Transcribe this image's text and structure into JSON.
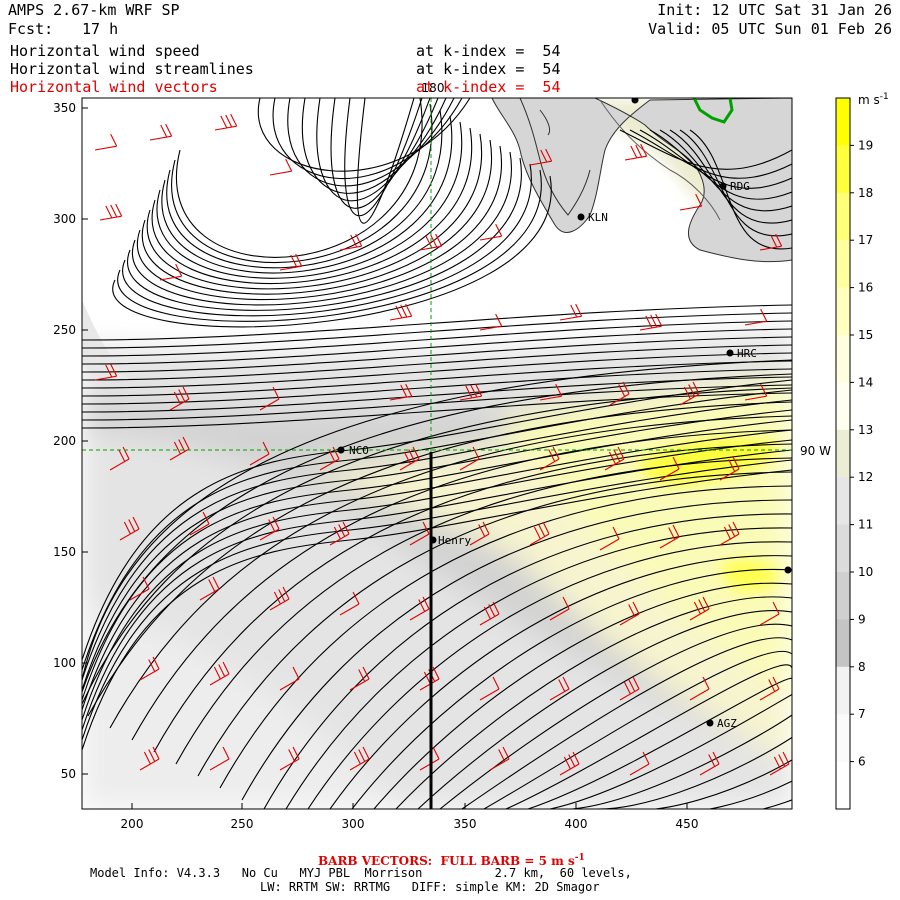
{
  "header": {
    "model_title": "AMPS 2.67-km WRF SP",
    "init": "Init: 12 UTC Sat 31 Jan 26",
    "fcst_label": "Fcst:",
    "fcst_value": "17 h",
    "valid": "Valid: 05 UTC Sun 01 Feb 26"
  },
  "fields": [
    {
      "name": "Horizontal wind speed",
      "level": "at k-index =  54"
    },
    {
      "name": "Horizontal wind streamlines",
      "level": "at k-index =  54"
    },
    {
      "name": "Horizontal wind vectors",
      "level": "at k-index =  54"
    }
  ],
  "map": {
    "x_ticks": [
      "200",
      "250",
      "300",
      "350",
      "400",
      "450"
    ],
    "y_ticks": [
      "350",
      "300",
      "250",
      "200",
      "150",
      "100",
      "50"
    ],
    "meridian_label": "180",
    "parallel_label": "90 W",
    "stations": [
      {
        "id": "NCO"
      },
      {
        "id": "Henry"
      },
      {
        "id": "KLN"
      },
      {
        "id": "RDG"
      },
      {
        "id": "HRC"
      },
      {
        "id": "AGZ"
      },
      {
        "id": "top"
      },
      {
        "id": "edge"
      }
    ],
    "station_labels": [
      "NCO",
      "Henry",
      "KLN",
      "RDG",
      "HRC",
      "AGZ"
    ]
  },
  "colorbar": {
    "units": "m s",
    "units_exp": "-1",
    "labels": [
      "19",
      "18",
      "17",
      "16",
      "15",
      "14",
      "13",
      "12",
      "11",
      "10",
      "9",
      "8",
      "7",
      "6"
    ],
    "colors": [
      "#ffff00",
      "#ffff3c",
      "#ffff78",
      "#ffffa0",
      "#ffffc0",
      "#ffffe0",
      "#ffffef",
      "#ededd5",
      "#e6e6e6",
      "#dcdcdc",
      "#d0d0d0",
      "#c4c4c4",
      "#f2f2f2",
      "#fafafa",
      "#ffffff"
    ]
  },
  "footer": {
    "barb_label": "BARB VECTORS:  FULL BARB = 5 m s",
    "barb_exp": "-1",
    "model_info": "Model Info: V4.3.3   No Cu   MYJ PBL  Morrison          2.7 km,  60 levels,",
    "physics": "LW: RRTM SW: RRTMG   DIFF: simple KM: 2D Smagor"
  }
}
